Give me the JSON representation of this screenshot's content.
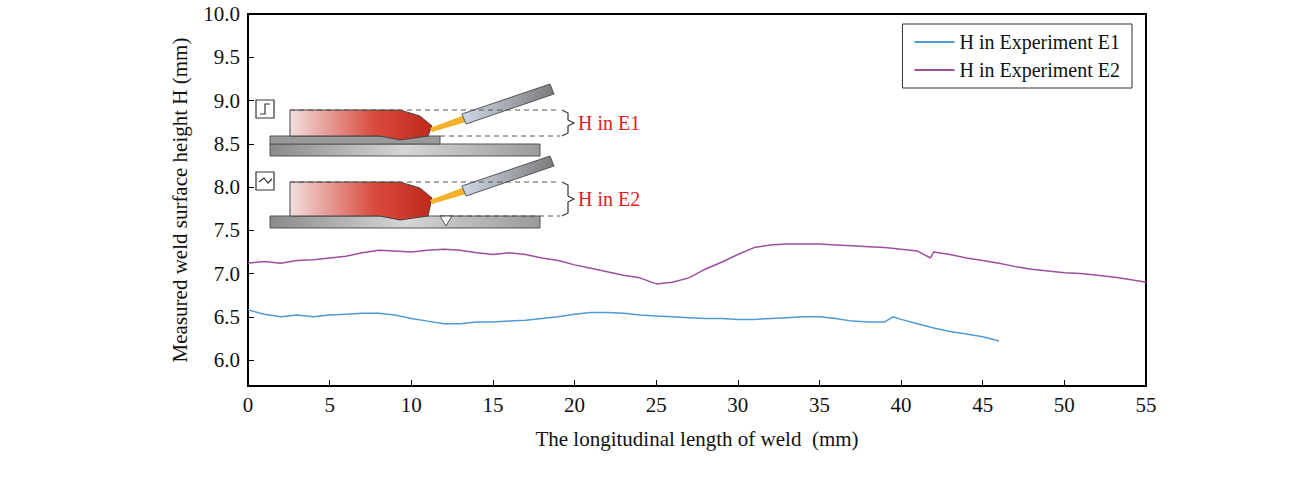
{
  "chart_data": {
    "type": "line",
    "x_label": "The longitudinal length of weld  (mm)",
    "y_label": "Measured weld surface height H (mm)",
    "xlim": [
      0,
      55
    ],
    "xticks": [
      0,
      5,
      10,
      15,
      20,
      25,
      30,
      35,
      40,
      45,
      50,
      55
    ],
    "ylim": [
      5.7,
      10.0
    ],
    "yticks": [
      {
        "value": 6,
        "label": "6.0"
      },
      6.5,
      {
        "value": 7,
        "label": "7.0"
      },
      7.5,
      {
        "value": 8,
        "label": "8.0"
      },
      8.5,
      {
        "value": 9,
        "label": "9.0"
      },
      9.5,
      {
        "value": 10,
        "label": "10.0"
      }
    ],
    "grid": false,
    "legend": "upper right",
    "annotations": [
      "H in E1",
      "H in E2"
    ],
    "series": [
      {
        "name": "H in Experiment E1",
        "color": "#4f9bd6",
        "x": [
          0,
          1,
          2,
          3,
          4,
          5,
          6,
          7,
          8,
          9,
          10,
          11,
          12,
          13,
          14,
          15,
          16,
          17,
          18,
          19,
          20,
          21,
          22,
          23,
          24,
          25,
          26,
          27,
          28,
          29,
          30,
          31,
          32,
          33,
          34,
          35,
          36,
          37,
          38,
          39,
          39.5,
          40,
          41,
          42,
          43,
          44,
          45,
          46
        ],
        "values": [
          6.58,
          6.53,
          6.5,
          6.52,
          6.5,
          6.52,
          6.53,
          6.54,
          6.54,
          6.52,
          6.48,
          6.45,
          6.42,
          6.42,
          6.44,
          6.44,
          6.45,
          6.46,
          6.48,
          6.5,
          6.53,
          6.55,
          6.55,
          6.54,
          6.52,
          6.51,
          6.5,
          6.49,
          6.48,
          6.48,
          6.47,
          6.47,
          6.48,
          6.49,
          6.5,
          6.5,
          6.48,
          6.45,
          6.44,
          6.44,
          6.5,
          6.47,
          6.42,
          6.37,
          6.33,
          6.3,
          6.27,
          6.22
        ]
      },
      {
        "name": "H in Experiment E2",
        "color": "#9e4fa0",
        "x": [
          0,
          1,
          2,
          3,
          4,
          5,
          6,
          7,
          8,
          9,
          10,
          11,
          12,
          13,
          14,
          15,
          16,
          17,
          18,
          19,
          20,
          21,
          22,
          23,
          24,
          25,
          26,
          27,
          28,
          29,
          30,
          31,
          32,
          33,
          34,
          35,
          36,
          37,
          38,
          39,
          40,
          41,
          41.8,
          42,
          43,
          44,
          45,
          46,
          47,
          48,
          49,
          50,
          51,
          52,
          53,
          54,
          55
        ],
        "values": [
          7.12,
          7.14,
          7.12,
          7.15,
          7.16,
          7.18,
          7.2,
          7.24,
          7.27,
          7.26,
          7.25,
          7.27,
          7.28,
          7.27,
          7.24,
          7.22,
          7.24,
          7.22,
          7.18,
          7.15,
          7.1,
          7.06,
          7.02,
          6.98,
          6.95,
          6.88,
          6.9,
          6.95,
          7.05,
          7.13,
          7.22,
          7.3,
          7.33,
          7.34,
          7.34,
          7.34,
          7.33,
          7.32,
          7.31,
          7.3,
          7.28,
          7.26,
          7.18,
          7.25,
          7.22,
          7.18,
          7.15,
          7.12,
          7.08,
          7.05,
          7.03,
          7.01,
          7.0,
          6.98,
          6.96,
          6.93,
          6.9
        ]
      }
    ]
  }
}
